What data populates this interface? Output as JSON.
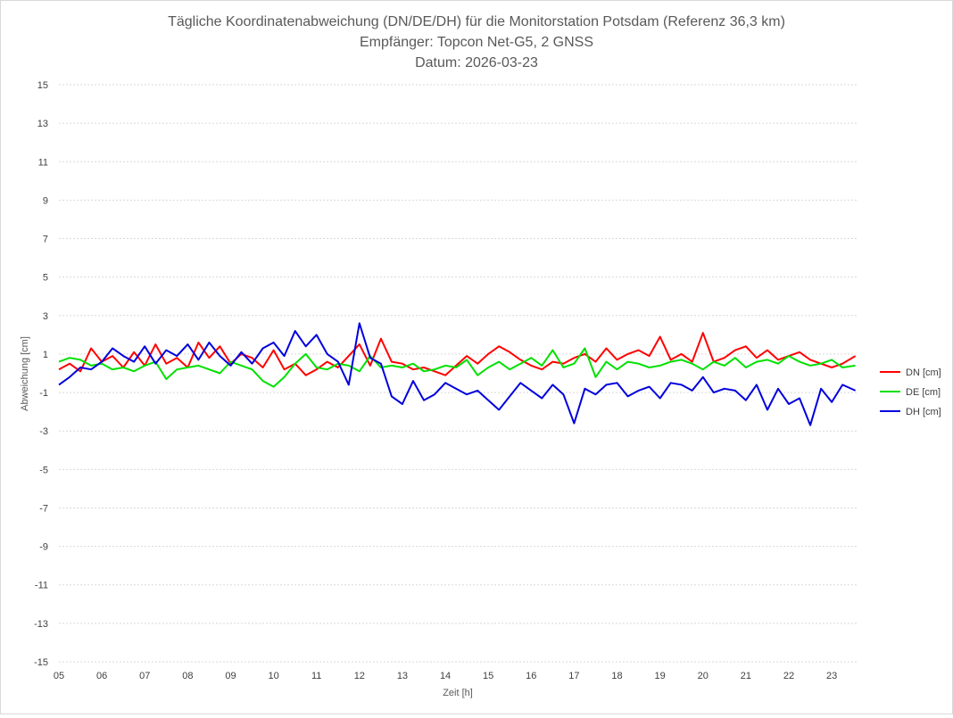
{
  "chart_data": {
    "type": "line",
    "title": "Tägliche Koordinatenabweichung (DN/DE/DH) für die Monitorstation Potsdam (Referenz 36,3 km)",
    "subtitle_lines": [
      "Empfänger: Topcon Net-G5, 2 GNSS",
      "Datum: 2026-03-23"
    ],
    "xlabel": "Zeit [h]",
    "ylabel": "Abweichung [cm]",
    "xlim": [
      5,
      23.6
    ],
    "ylim": [
      -15,
      15
    ],
    "x_tick_labels": [
      "05",
      "06",
      "07",
      "08",
      "09",
      "10",
      "11",
      "12",
      "13",
      "14",
      "15",
      "16",
      "17",
      "18",
      "19",
      "20",
      "21",
      "22",
      "23"
    ],
    "y_tick_labels": [
      "15",
      "13",
      "11",
      "9",
      "7",
      "5",
      "3",
      "1",
      "-1",
      "-3",
      "-5",
      "-7",
      "-9",
      "-11",
      "-13",
      "-15"
    ],
    "grid": "horizontal dotted",
    "legend_position": "right",
    "x": [
      5.0,
      5.25,
      5.5,
      5.75,
      6.0,
      6.25,
      6.5,
      6.75,
      7.0,
      7.25,
      7.5,
      7.75,
      8.0,
      8.25,
      8.5,
      8.75,
      9.0,
      9.25,
      9.5,
      9.75,
      10.0,
      10.25,
      10.5,
      10.75,
      11.0,
      11.25,
      11.5,
      11.75,
      12.0,
      12.25,
      12.5,
      12.75,
      13.0,
      13.25,
      13.5,
      13.75,
      14.0,
      14.25,
      14.5,
      14.75,
      15.0,
      15.25,
      15.5,
      15.75,
      16.0,
      16.25,
      16.5,
      16.75,
      17.0,
      17.25,
      17.5,
      17.75,
      18.0,
      18.25,
      18.5,
      18.75,
      19.0,
      19.25,
      19.5,
      19.75,
      20.0,
      20.25,
      20.5,
      20.75,
      21.0,
      21.25,
      21.5,
      21.75,
      22.0,
      22.25,
      22.5,
      22.75,
      23.0,
      23.25,
      23.55
    ],
    "series": [
      {
        "name": "DN [cm]",
        "color": "#ff0000",
        "values": [
          0.2,
          0.5,
          0.1,
          1.3,
          0.6,
          0.9,
          0.3,
          1.1,
          0.4,
          1.5,
          0.5,
          0.8,
          0.3,
          1.6,
          0.8,
          1.4,
          0.5,
          1.0,
          0.8,
          0.3,
          1.2,
          0.2,
          0.5,
          -0.1,
          0.2,
          0.6,
          0.3,
          0.9,
          1.5,
          0.4,
          1.8,
          0.6,
          0.5,
          0.2,
          0.3,
          0.1,
          -0.1,
          0.4,
          0.9,
          0.5,
          1.0,
          1.4,
          1.1,
          0.7,
          0.4,
          0.2,
          0.6,
          0.5,
          0.8,
          1.0,
          0.6,
          1.3,
          0.7,
          1.0,
          1.2,
          0.9,
          1.9,
          0.7,
          1.0,
          0.6,
          2.1,
          0.6,
          0.8,
          1.2,
          1.4,
          0.8,
          1.2,
          0.7,
          0.9,
          1.1,
          0.7,
          0.5,
          0.3,
          0.5,
          0.9
        ]
      },
      {
        "name": "DE [cm]",
        "color": "#00e000",
        "values": [
          0.6,
          0.8,
          0.7,
          0.4,
          0.5,
          0.2,
          0.3,
          0.1,
          0.4,
          0.6,
          -0.3,
          0.2,
          0.3,
          0.4,
          0.2,
          0.0,
          0.6,
          0.4,
          0.2,
          -0.4,
          -0.7,
          -0.2,
          0.5,
          1.0,
          0.3,
          0.2,
          0.5,
          0.4,
          0.1,
          0.9,
          0.3,
          0.4,
          0.3,
          0.5,
          0.1,
          0.2,
          0.4,
          0.3,
          0.7,
          -0.1,
          0.3,
          0.6,
          0.2,
          0.5,
          0.8,
          0.4,
          1.2,
          0.3,
          0.5,
          1.3,
          -0.2,
          0.6,
          0.2,
          0.6,
          0.5,
          0.3,
          0.4,
          0.6,
          0.7,
          0.5,
          0.2,
          0.6,
          0.4,
          0.8,
          0.3,
          0.6,
          0.7,
          0.5,
          0.9,
          0.6,
          0.4,
          0.5,
          0.7,
          0.3,
          0.4
        ]
      },
      {
        "name": "DH [cm]",
        "color": "#0000dd",
        "values": [
          -0.6,
          -0.2,
          0.3,
          0.2,
          0.6,
          1.3,
          0.9,
          0.6,
          1.4,
          0.5,
          1.2,
          0.9,
          1.5,
          0.7,
          1.6,
          0.9,
          0.4,
          1.1,
          0.5,
          1.3,
          1.6,
          0.9,
          2.2,
          1.4,
          2.0,
          1.0,
          0.6,
          -0.6,
          2.6,
          0.8,
          0.5,
          -1.2,
          -1.6,
          -0.4,
          -1.4,
          -1.1,
          -0.5,
          -0.8,
          -1.1,
          -0.9,
          -1.4,
          -1.9,
          -1.2,
          -0.5,
          -0.9,
          -1.3,
          -0.6,
          -1.1,
          -2.6,
          -0.8,
          -1.1,
          -0.6,
          -0.5,
          -1.2,
          -0.9,
          -0.7,
          -1.3,
          -0.5,
          -0.6,
          -0.9,
          -0.2,
          -1.0,
          -0.8,
          -0.9,
          -1.4,
          -0.6,
          -1.9,
          -0.8,
          -1.6,
          -1.3,
          -2.7,
          -0.8,
          -1.5,
          -0.6,
          -0.9
        ]
      }
    ]
  }
}
